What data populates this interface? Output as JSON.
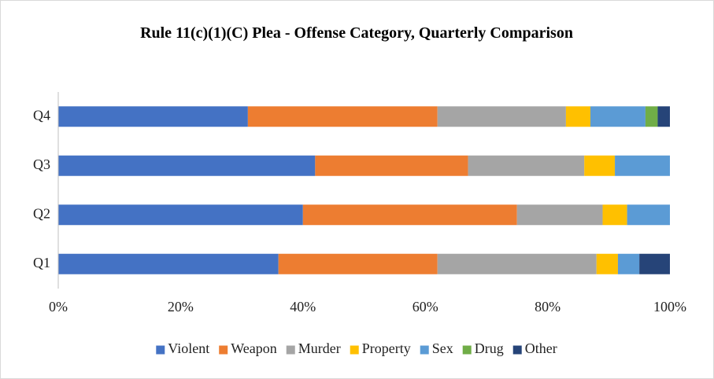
{
  "chart_data": {
    "type": "stacked-barh",
    "title": "Rule 11(c)(1)(C) Plea - Offense Category, Quarterly Comparison",
    "categories": [
      "Q1",
      "Q2",
      "Q3",
      "Q4"
    ],
    "series": [
      {
        "name": "Violent",
        "color": "#4472c4",
        "values": [
          36,
          40,
          42,
          31
        ]
      },
      {
        "name": "Weapon",
        "color": "#ed7d31",
        "values": [
          26,
          35,
          25,
          31
        ]
      },
      {
        "name": "Murder",
        "color": "#a5a5a5",
        "values": [
          26,
          14,
          19,
          21
        ]
      },
      {
        "name": "Property",
        "color": "#ffc000",
        "values": [
          3.5,
          4,
          5,
          4
        ]
      },
      {
        "name": "Sex",
        "color": "#5b9bd5",
        "values": [
          3.5,
          7,
          9,
          9
        ]
      },
      {
        "name": "Drug",
        "color": "#70ad47",
        "values": [
          0,
          0,
          0,
          2
        ]
      },
      {
        "name": "Other",
        "color": "#264478",
        "values": [
          5,
          0,
          0,
          2
        ]
      }
    ],
    "xlim": [
      0,
      100
    ],
    "xticks": [
      {
        "value": 0,
        "label": "0%"
      },
      {
        "value": 20,
        "label": "20%"
      },
      {
        "value": 40,
        "label": "40%"
      },
      {
        "value": 60,
        "label": "60%"
      },
      {
        "value": 80,
        "label": "80%"
      },
      {
        "value": 100,
        "label": "100%"
      }
    ],
    "legend": "bottom"
  }
}
